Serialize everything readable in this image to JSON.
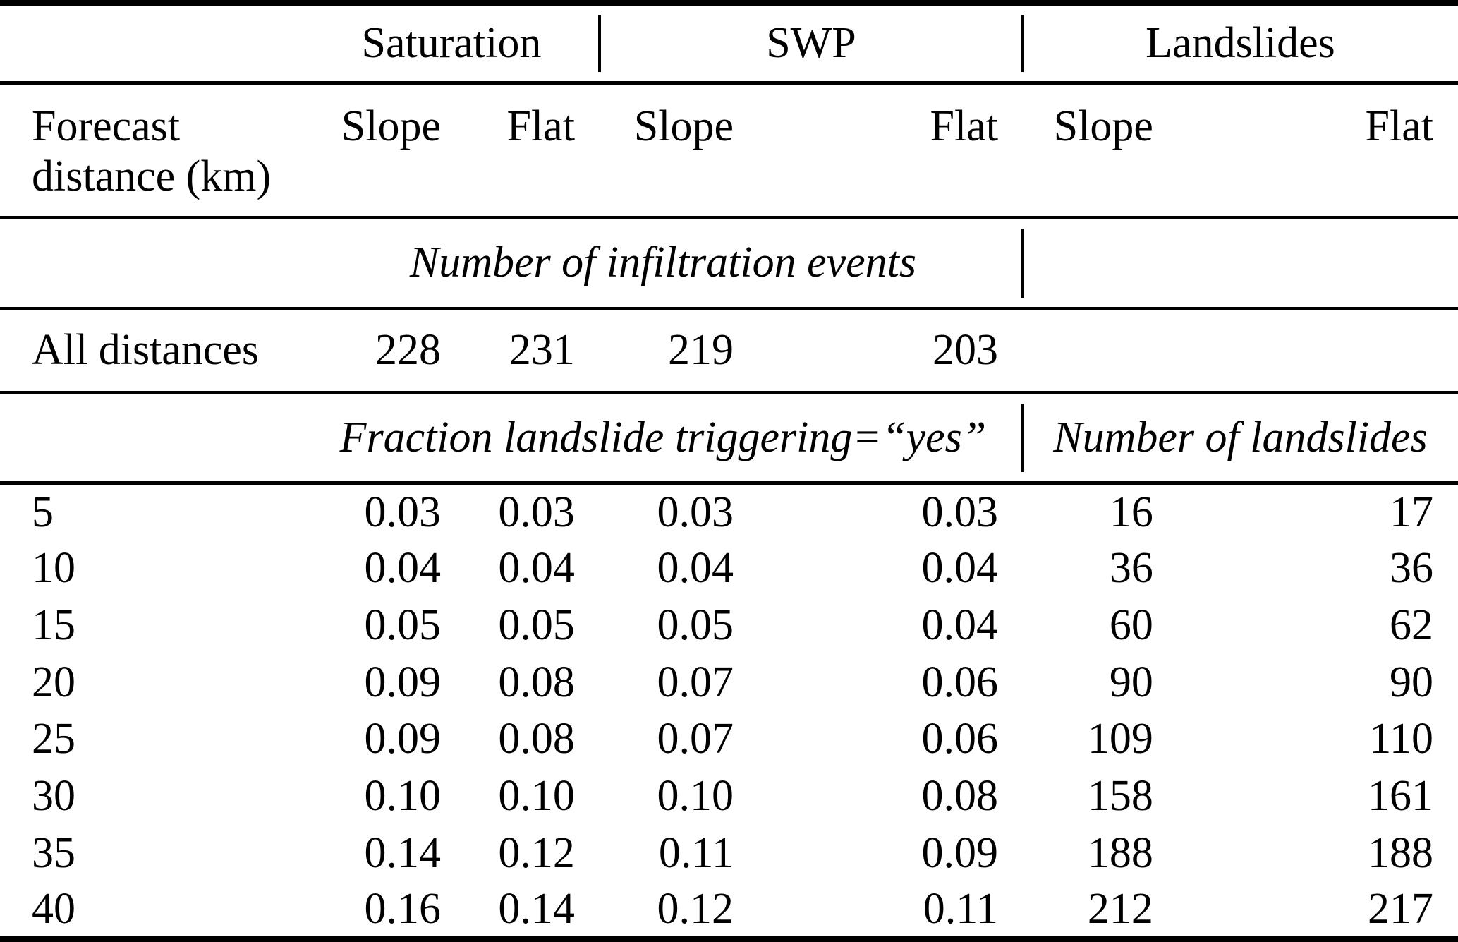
{
  "table": {
    "groups": [
      "Saturation",
      "SWP",
      "Landslides"
    ],
    "row_header": "Forecast distance (km)",
    "sub_headers": [
      "Slope",
      "Flat",
      "Slope",
      "Flat",
      "Slope",
      "Flat"
    ],
    "sections": [
      {
        "title": "Number of infiltration events",
        "side_title": "",
        "rows": [
          {
            "label": "All distances",
            "values": [
              "228",
              "231",
              "219",
              "203",
              "",
              ""
            ]
          }
        ]
      },
      {
        "title": "Fraction landslide triggering=“yes”",
        "side_title": "Number of landslides",
        "rows": [
          {
            "label": "5",
            "values": [
              "0.03",
              "0.03",
              "0.03",
              "0.03",
              "16",
              "17"
            ]
          },
          {
            "label": "10",
            "values": [
              "0.04",
              "0.04",
              "0.04",
              "0.04",
              "36",
              "36"
            ]
          },
          {
            "label": "15",
            "values": [
              "0.05",
              "0.05",
              "0.05",
              "0.04",
              "60",
              "62"
            ]
          },
          {
            "label": "20",
            "values": [
              "0.09",
              "0.08",
              "0.07",
              "0.06",
              "90",
              "90"
            ]
          },
          {
            "label": "25",
            "values": [
              "0.09",
              "0.08",
              "0.07",
              "0.06",
              "109",
              "110"
            ]
          },
          {
            "label": "30",
            "values": [
              "0.10",
              "0.10",
              "0.10",
              "0.08",
              "158",
              "161"
            ]
          },
          {
            "label": "35",
            "values": [
              "0.14",
              "0.12",
              "0.11",
              "0.09",
              "188",
              "188"
            ]
          },
          {
            "label": "40",
            "values": [
              "0.16",
              "0.14",
              "0.12",
              "0.11",
              "212",
              "217"
            ]
          }
        ]
      }
    ],
    "colors": {
      "text": "#000000",
      "background": "#ffffff",
      "rule": "#000000"
    }
  }
}
